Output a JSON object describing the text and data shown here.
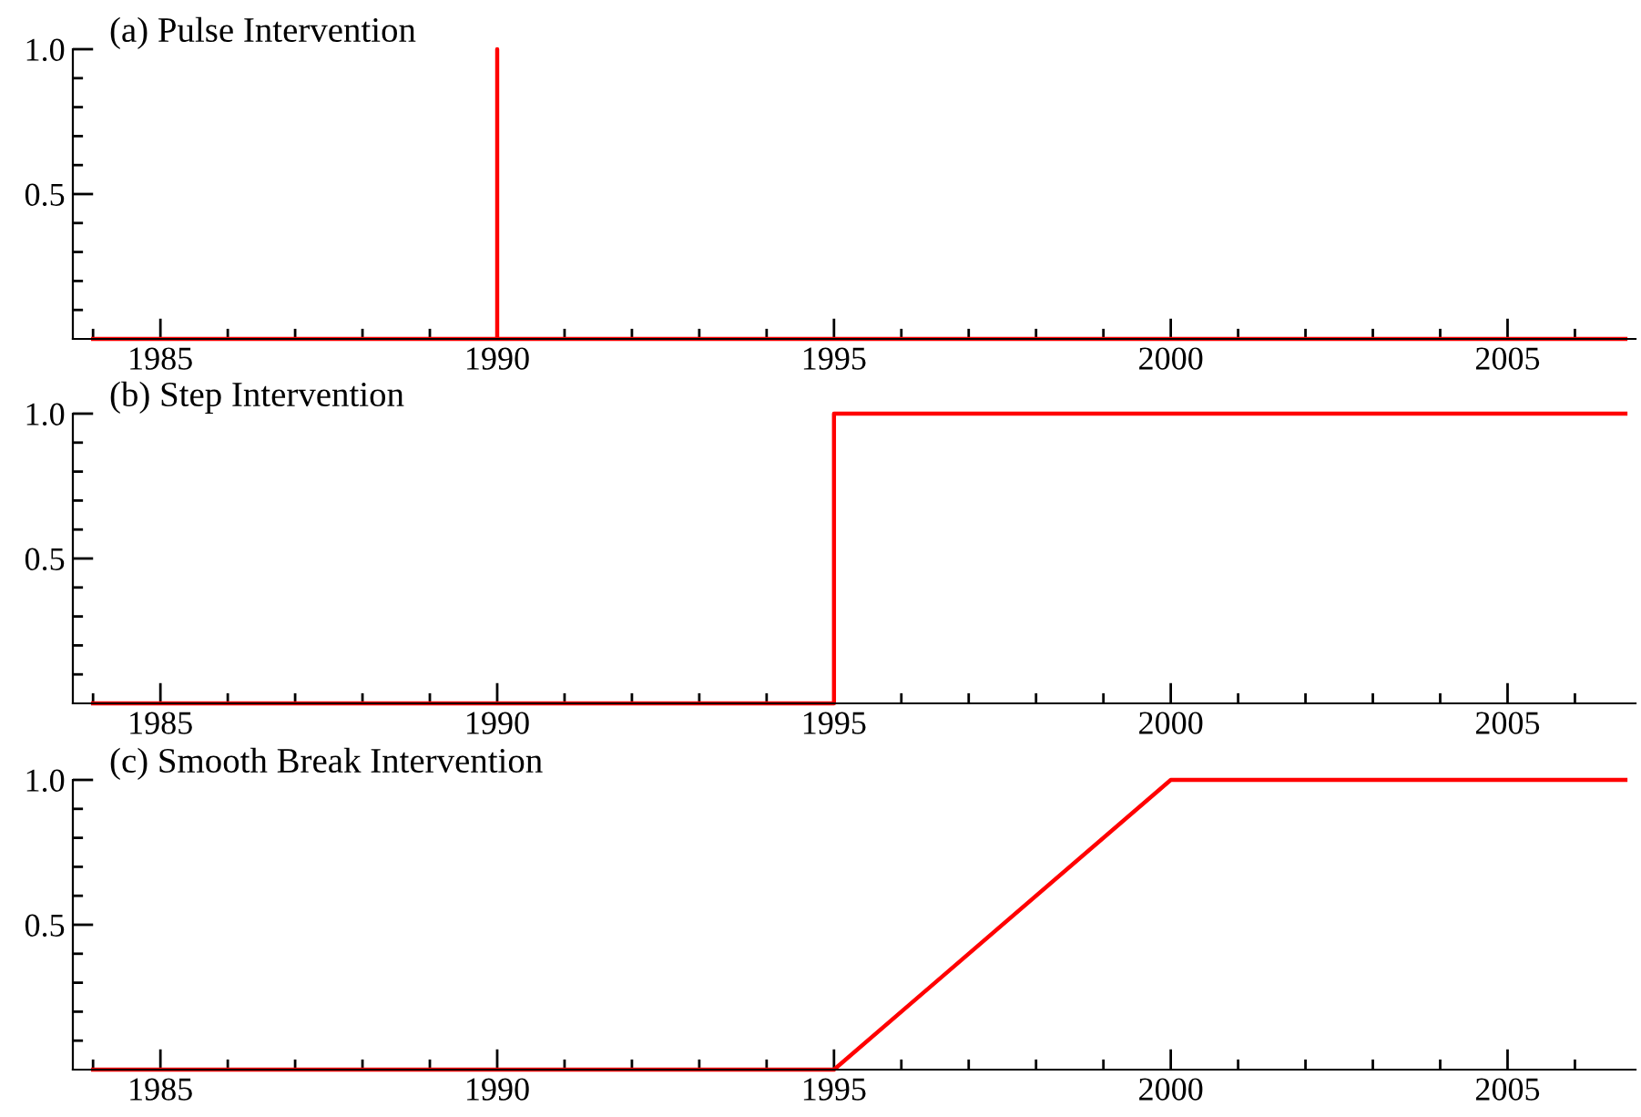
{
  "chart_data": [
    {
      "type": "line",
      "title": "(a) Pulse Intervention",
      "x": [
        1984,
        1990,
        1990,
        1990,
        2006.75
      ],
      "series": [
        {
          "color": "#ff0000",
          "values": [
            0,
            0,
            1,
            0,
            0
          ]
        }
      ],
      "xlim": [
        1983.7,
        2006.9
      ],
      "ylim": [
        0,
        1.0
      ],
      "xticks": [
        {
          "value": 1984,
          "label": null
        },
        1985,
        {
          "value": 1986,
          "label": null
        },
        {
          "value": 1987,
          "label": null
        },
        {
          "value": 1988,
          "label": null
        },
        {
          "value": 1989,
          "label": null
        },
        1990,
        {
          "value": 1991,
          "label": null
        },
        {
          "value": 1992,
          "label": null
        },
        {
          "value": 1993,
          "label": null
        },
        {
          "value": 1994,
          "label": null
        },
        1995,
        {
          "value": 1996,
          "label": null
        },
        {
          "value": 1997,
          "label": null
        },
        {
          "value": 1998,
          "label": null
        },
        {
          "value": 1999,
          "label": null
        },
        2000,
        {
          "value": 2001,
          "label": null
        },
        {
          "value": 2002,
          "label": null
        },
        {
          "value": 2003,
          "label": null
        },
        {
          "value": 2004,
          "label": null
        },
        2005,
        {
          "value": 2006,
          "label": null
        }
      ],
      "yticks": [
        {
          "value": 0.1,
          "label": null
        },
        {
          "value": 0.2,
          "label": null
        },
        {
          "value": 0.3,
          "label": null
        },
        {
          "value": 0.4,
          "label": null
        },
        {
          "value": 0.5,
          "label": "0.5"
        },
        {
          "value": 0.6,
          "label": null
        },
        {
          "value": 0.7,
          "label": null
        },
        {
          "value": 0.8,
          "label": null
        },
        {
          "value": 0.9,
          "label": null
        },
        {
          "value": 1.0,
          "label": "1.0"
        }
      ],
      "grid": false,
      "marker": "none",
      "line_style": "solid"
    },
    {
      "type": "line",
      "title": "(b) Step Intervention",
      "x": [
        1984,
        1995,
        1995,
        2006.75
      ],
      "series": [
        {
          "color": "#ff0000",
          "values": [
            0,
            0,
            1,
            1
          ]
        }
      ],
      "xlim": [
        1983.7,
        2006.9
      ],
      "ylim": [
        0,
        1.0
      ],
      "xticks": [
        {
          "value": 1984,
          "label": null
        },
        1985,
        {
          "value": 1986,
          "label": null
        },
        {
          "value": 1987,
          "label": null
        },
        {
          "value": 1988,
          "label": null
        },
        {
          "value": 1989,
          "label": null
        },
        1990,
        {
          "value": 1991,
          "label": null
        },
        {
          "value": 1992,
          "label": null
        },
        {
          "value": 1993,
          "label": null
        },
        {
          "value": 1994,
          "label": null
        },
        1995,
        {
          "value": 1996,
          "label": null
        },
        {
          "value": 1997,
          "label": null
        },
        {
          "value": 1998,
          "label": null
        },
        {
          "value": 1999,
          "label": null
        },
        2000,
        {
          "value": 2001,
          "label": null
        },
        {
          "value": 2002,
          "label": null
        },
        {
          "value": 2003,
          "label": null
        },
        {
          "value": 2004,
          "label": null
        },
        2005,
        {
          "value": 2006,
          "label": null
        }
      ],
      "yticks": [
        {
          "value": 0.1,
          "label": null
        },
        {
          "value": 0.2,
          "label": null
        },
        {
          "value": 0.3,
          "label": null
        },
        {
          "value": 0.4,
          "label": null
        },
        {
          "value": 0.5,
          "label": "0.5"
        },
        {
          "value": 0.6,
          "label": null
        },
        {
          "value": 0.7,
          "label": null
        },
        {
          "value": 0.8,
          "label": null
        },
        {
          "value": 0.9,
          "label": null
        },
        {
          "value": 1.0,
          "label": "1.0"
        }
      ],
      "grid": false,
      "marker": "none",
      "line_style": "solid"
    },
    {
      "type": "line",
      "title": "(c) Smooth Break Intervention",
      "x": [
        1984,
        1995,
        2000,
        2006.75
      ],
      "series": [
        {
          "color": "#ff0000",
          "values": [
            0,
            0,
            1,
            1
          ]
        }
      ],
      "xlim": [
        1983.7,
        2006.9
      ],
      "ylim": [
        0,
        1.0
      ],
      "xticks": [
        {
          "value": 1984,
          "label": null
        },
        1985,
        {
          "value": 1986,
          "label": null
        },
        {
          "value": 1987,
          "label": null
        },
        {
          "value": 1988,
          "label": null
        },
        {
          "value": 1989,
          "label": null
        },
        1990,
        {
          "value": 1991,
          "label": null
        },
        {
          "value": 1992,
          "label": null
        },
        {
          "value": 1993,
          "label": null
        },
        {
          "value": 1994,
          "label": null
        },
        1995,
        {
          "value": 1996,
          "label": null
        },
        {
          "value": 1997,
          "label": null
        },
        {
          "value": 1998,
          "label": null
        },
        {
          "value": 1999,
          "label": null
        },
        2000,
        {
          "value": 2001,
          "label": null
        },
        {
          "value": 2002,
          "label": null
        },
        {
          "value": 2003,
          "label": null
        },
        {
          "value": 2004,
          "label": null
        },
        2005,
        {
          "value": 2006,
          "label": null
        }
      ],
      "yticks": [
        {
          "value": 0.1,
          "label": null
        },
        {
          "value": 0.2,
          "label": null
        },
        {
          "value": 0.3,
          "label": null
        },
        {
          "value": 0.4,
          "label": null
        },
        {
          "value": 0.5,
          "label": "0.5"
        },
        {
          "value": 0.6,
          "label": null
        },
        {
          "value": 0.7,
          "label": null
        },
        {
          "value": 0.8,
          "label": null
        },
        {
          "value": 0.9,
          "label": null
        },
        {
          "value": 1.0,
          "label": "1.0"
        }
      ],
      "grid": false,
      "marker": "none",
      "line_style": "solid"
    }
  ]
}
